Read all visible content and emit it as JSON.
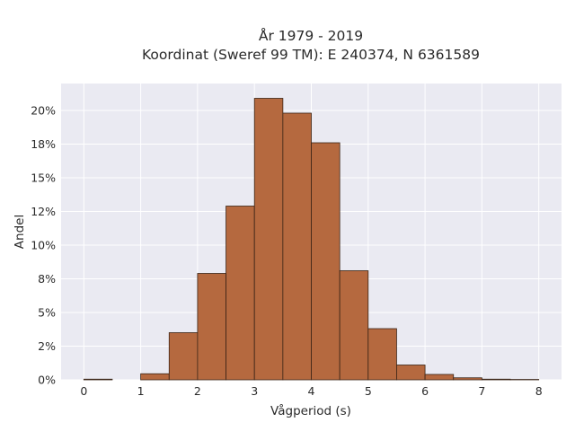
{
  "chart_data": {
    "type": "bar",
    "title_lines": [
      "År 1979 - 2019",
      "Koordinat (Sweref 99 TM): E 240374, N 6361589"
    ],
    "xlabel": "Vågperiod (s)",
    "ylabel": "Andel",
    "xlim": [
      -0.4,
      8.4
    ],
    "ylim": [
      0,
      22.0
    ],
    "x_ticks": [
      0,
      1,
      2,
      3,
      4,
      5,
      6,
      7,
      8
    ],
    "y_ticks": [
      {
        "value": 0,
        "label": "0%"
      },
      {
        "value": 2.5,
        "label": "2%"
      },
      {
        "value": 5,
        "label": "5%"
      },
      {
        "value": 7.5,
        "label": "8%"
      },
      {
        "value": 10,
        "label": "10%"
      },
      {
        "value": 12.5,
        "label": "12%"
      },
      {
        "value": 15,
        "label": "15%"
      },
      {
        "value": 17.5,
        "label": "18%"
      },
      {
        "value": 20,
        "label": "20%"
      }
    ],
    "bin_width": 0.5,
    "bin_starts": [
      0,
      0.5,
      1,
      1.5,
      2,
      2.5,
      3,
      3.5,
      4,
      4.5,
      5,
      5.5,
      6,
      6.5,
      7,
      7.5
    ],
    "values": [
      0.05,
      0,
      0.45,
      3.5,
      7.9,
      12.9,
      20.9,
      19.8,
      17.6,
      8.1,
      3.8,
      1.1,
      0.4,
      0.15,
      0.05,
      0.03
    ],
    "grid": true,
    "colors": {
      "bar_fill": "#b5693f",
      "bar_edge": "#3a2416",
      "plot_bg": "#eaeaf2",
      "grid": "#ffffff"
    }
  }
}
